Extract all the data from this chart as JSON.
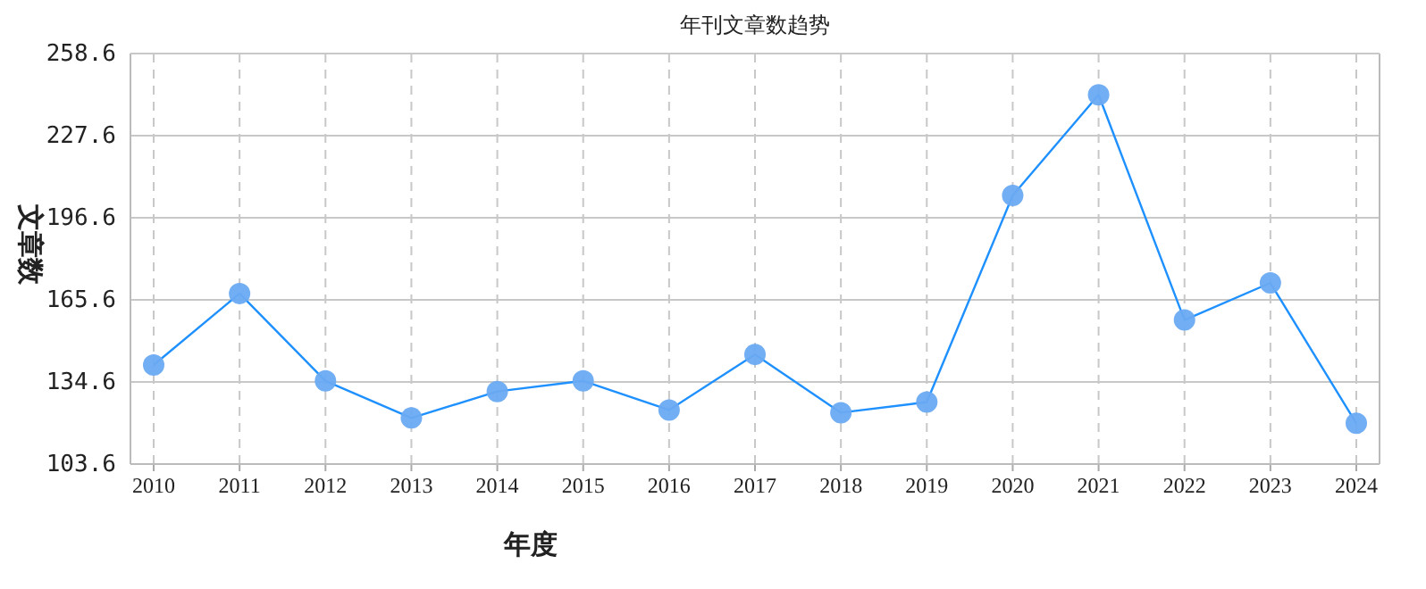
{
  "chart_data": {
    "type": "line",
    "title": "年刊文章数趋势",
    "xlabel": "年度",
    "ylabel": "文章数",
    "categories": [
      "2010",
      "2011",
      "2012",
      "2013",
      "2014",
      "2015",
      "2016",
      "2017",
      "2018",
      "2019",
      "2020",
      "2021",
      "2022",
      "2023",
      "2024"
    ],
    "series": [
      {
        "color": "#1e90ff",
        "values": [
          141,
          168,
          135,
          121,
          131,
          135,
          124,
          145,
          123,
          127,
          205,
          243,
          158,
          172,
          119
        ]
      }
    ],
    "ylim": [
      103.6,
      258.6
    ],
    "yticks": [
      103.6,
      134.6,
      165.6,
      196.6,
      227.6,
      258.6
    ],
    "grid": true,
    "marker": "circle",
    "line_style": "solid"
  }
}
